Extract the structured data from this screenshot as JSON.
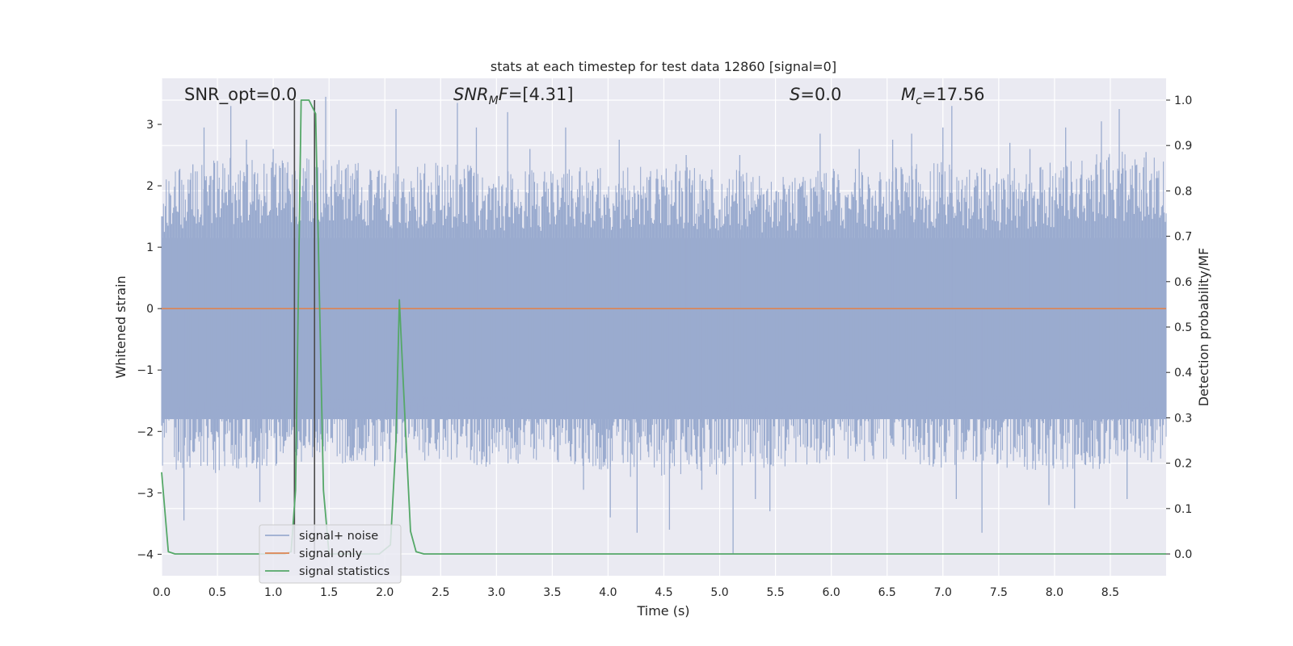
{
  "chart_data": {
    "type": "line",
    "title": "stats at each timestep for test data 12860 [signal=0]",
    "xlabel": "Time (s)",
    "ylabel": "Whitened strain",
    "y2label": "Detection probability/MF",
    "xlim": [
      0.0,
      9.0
    ],
    "ylim": [
      -4.35,
      3.75
    ],
    "y2lim": [
      -0.048,
      1.048
    ],
    "xticks": [
      "0.0",
      "0.5",
      "1.0",
      "1.5",
      "2.0",
      "2.5",
      "3.0",
      "3.5",
      "4.0",
      "4.5",
      "5.0",
      "5.5",
      "6.0",
      "6.5",
      "7.0",
      "7.5",
      "8.0",
      "8.5"
    ],
    "yticks": [
      "3",
      "2",
      "1",
      "0",
      "−1",
      "−2",
      "−3",
      "−4"
    ],
    "y2ticks": [
      "1.0",
      "0.9",
      "0.8",
      "0.7",
      "0.6",
      "0.5",
      "0.4",
      "0.3",
      "0.2",
      "0.1",
      "0.0"
    ],
    "grid": true,
    "legend": "lower-left",
    "series": [
      {
        "name": "signal+ noise",
        "color": "#9aabcf",
        "axis": "left",
        "noise_envelope": {
          "x": [
            0.0,
            0.5,
            1.0,
            1.5,
            2.0,
            2.5,
            3.0,
            3.5,
            4.0,
            4.5,
            5.0,
            5.5,
            6.0,
            6.5,
            7.0,
            7.5,
            8.0,
            8.5,
            9.0
          ],
          "upper": [
            2.2,
            2.5,
            2.4,
            2.5,
            2.3,
            2.4,
            2.3,
            2.3,
            2.3,
            2.4,
            2.3,
            2.2,
            2.3,
            2.3,
            2.4,
            2.3,
            2.4,
            2.6,
            2.5
          ],
          "lower": [
            -2.6,
            -2.7,
            -2.6,
            -2.5,
            -2.6,
            -2.5,
            -2.6,
            -2.5,
            -2.7,
            -2.8,
            -2.7,
            -2.6,
            -2.5,
            -2.5,
            -2.6,
            -2.6,
            -2.7,
            -2.6,
            -2.5
          ]
        },
        "peaks": [
          {
            "x": 0.2,
            "y": -3.45
          },
          {
            "x": 0.28,
            "y": 2.35
          },
          {
            "x": 0.38,
            "y": 2.95
          },
          {
            "x": 0.62,
            "y": 3.3
          },
          {
            "x": 0.76,
            "y": 2.75
          },
          {
            "x": 0.88,
            "y": -3.15
          },
          {
            "x": 1.0,
            "y": 2.6
          },
          {
            "x": 1.47,
            "y": 3.45
          },
          {
            "x": 1.75,
            "y": 2.25
          },
          {
            "x": 2.1,
            "y": 3.25
          },
          {
            "x": 2.65,
            "y": 3.35
          },
          {
            "x": 2.82,
            "y": 2.95
          },
          {
            "x": 3.1,
            "y": 3.2
          },
          {
            "x": 3.3,
            "y": 2.6
          },
          {
            "x": 3.62,
            "y": 2.95
          },
          {
            "x": 3.78,
            "y": -2.95
          },
          {
            "x": 4.02,
            "y": -3.4
          },
          {
            "x": 4.1,
            "y": 2.75
          },
          {
            "x": 4.26,
            "y": -3.65
          },
          {
            "x": 4.55,
            "y": -3.6
          },
          {
            "x": 4.7,
            "y": 2.5
          },
          {
            "x": 4.84,
            "y": -2.95
          },
          {
            "x": 5.12,
            "y": -4.0
          },
          {
            "x": 5.18,
            "y": 2.5
          },
          {
            "x": 5.32,
            "y": -3.1
          },
          {
            "x": 5.45,
            "y": -3.3
          },
          {
            "x": 5.9,
            "y": 2.85
          },
          {
            "x": 6.25,
            "y": 2.6
          },
          {
            "x": 6.55,
            "y": 2.75
          },
          {
            "x": 6.72,
            "y": 2.85
          },
          {
            "x": 7.0,
            "y": 2.95
          },
          {
            "x": 7.08,
            "y": 3.3
          },
          {
            "x": 7.12,
            "y": -3.1
          },
          {
            "x": 7.35,
            "y": -3.65
          },
          {
            "x": 7.6,
            "y": 2.7
          },
          {
            "x": 7.78,
            "y": 2.6
          },
          {
            "x": 7.95,
            "y": -3.2
          },
          {
            "x": 8.1,
            "y": 2.95
          },
          {
            "x": 8.18,
            "y": -3.25
          },
          {
            "x": 8.42,
            "y": 3.05
          },
          {
            "x": 8.58,
            "y": 3.25
          },
          {
            "x": 8.65,
            "y": -3.1
          },
          {
            "x": 8.82,
            "y": 2.55
          }
        ]
      },
      {
        "name": "signal only",
        "color": "#dd8452",
        "axis": "left",
        "x": [
          0.0,
          9.0
        ],
        "values": [
          0.0,
          0.0
        ]
      },
      {
        "name": "signal statistics",
        "color": "#55a868",
        "axis": "right",
        "x": [
          0.0,
          0.06,
          0.12,
          0.5,
          1.0,
          1.1,
          1.16,
          1.2,
          1.25,
          1.32,
          1.38,
          1.45,
          1.5,
          1.6,
          1.8,
          1.95,
          2.05,
          2.1,
          2.13,
          2.18,
          2.23,
          2.28,
          2.35,
          2.5,
          9.0
        ],
        "values": [
          0.18,
          0.005,
          0.0,
          0.0,
          0.0,
          0.0,
          0.005,
          0.14,
          1.0,
          1.0,
          0.97,
          0.14,
          0.0,
          0.0,
          0.0,
          0.0,
          0.02,
          0.25,
          0.56,
          0.3,
          0.05,
          0.005,
          0.0,
          0.0,
          0.0
        ]
      }
    ],
    "vertical_markers": [
      {
        "x": 1.19,
        "color": "#4a4a4a"
      },
      {
        "x": 1.37,
        "color": "#4a4a4a"
      }
    ],
    "annotations": {
      "snr_opt": "SNR_opt=0.0",
      "snr_mf_main": "SNR",
      "snr_mf_sub": "M",
      "snr_mf_main2": "F",
      "snr_mf_value": "=[4.31]",
      "s_symbol": "S",
      "s_value": "=0.0",
      "mc_symbol": "M",
      "mc_sub": "c",
      "mc_value": "=17.56"
    }
  }
}
